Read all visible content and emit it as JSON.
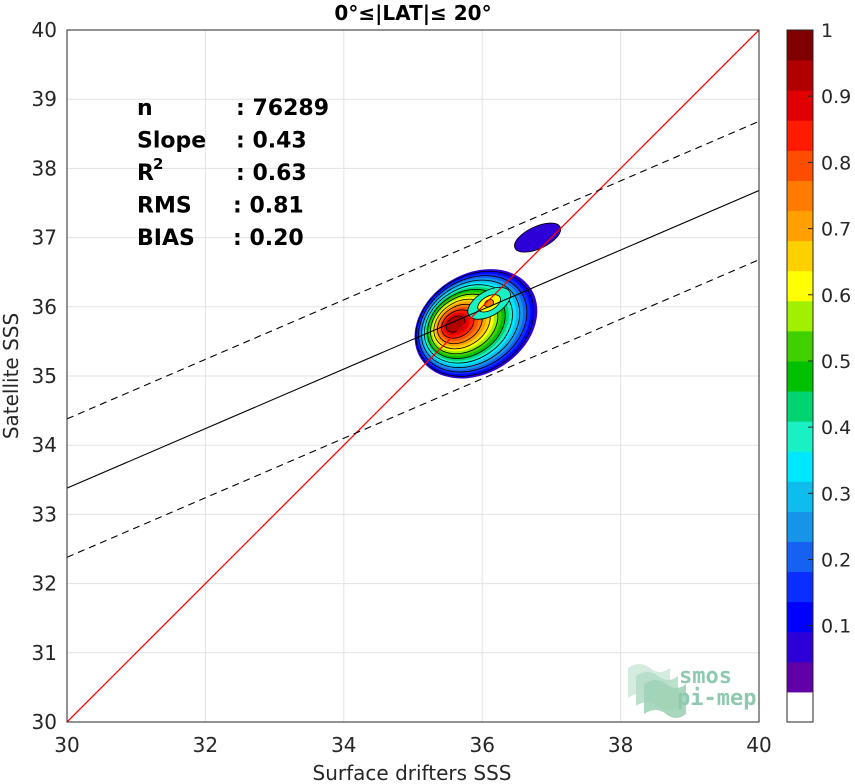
{
  "chart_data": {
    "type": "contour-density-scatter",
    "title": "0°≤|LAT|≤ 20°",
    "xlabel": "Surface drifters SSS",
    "ylabel": "Satellite SSS",
    "xlim": [
      30,
      40
    ],
    "ylim": [
      30,
      40
    ],
    "xticks": [
      "30",
      "32",
      "34",
      "36",
      "38",
      "40"
    ],
    "yticks": [
      "30",
      "31",
      "32",
      "33",
      "34",
      "35",
      "36",
      "37",
      "38",
      "39",
      "40"
    ],
    "grid": true,
    "stats": [
      {
        "label": "n",
        "value": ": 76289"
      },
      {
        "label": "Slope",
        "value": ": 0.43"
      },
      {
        "label": "R",
        "sup": "2",
        "value": ": 0.63"
      },
      {
        "label": "RMS",
        "value": ": 0.81"
      },
      {
        "label": "BIAS",
        "value": ": 0.20"
      }
    ],
    "fit_line": {
      "slope": 0.43,
      "intercept": 20.48
    },
    "fit_band_offset": 1.0,
    "identity_line": true,
    "colors": {
      "identity": "#ff0000",
      "fit": "#000000"
    },
    "colorbar": {
      "ticks": [
        "0.1",
        "0.2",
        "0.3",
        "0.4",
        "0.5",
        "0.6",
        "0.7",
        "0.8",
        "0.9",
        "1"
      ],
      "colors": [
        "#ffffff",
        "#5f00a8",
        "#2c00d6",
        "#0000ff",
        "#0a2eff",
        "#1561f2",
        "#1594ea",
        "#0fbcee",
        "#00e8ff",
        "#19f0c3",
        "#00d470",
        "#00c000",
        "#40d000",
        "#a0f000",
        "#ffff00",
        "#ffd000",
        "#ffa000",
        "#ff7a00",
        "#ff4d00",
        "#ff1a00",
        "#e00000",
        "#b00000",
        "#800000"
      ]
    },
    "density": {
      "main_peak": {
        "x": 35.6,
        "y": 35.75
      },
      "secondary_peak": {
        "x": 36.1,
        "y": 36.05
      },
      "satellite_blob": {
        "x": 36.8,
        "y": 37.0,
        "level": 0.2
      }
    },
    "watermark": [
      "smos",
      "pi-mep"
    ]
  }
}
